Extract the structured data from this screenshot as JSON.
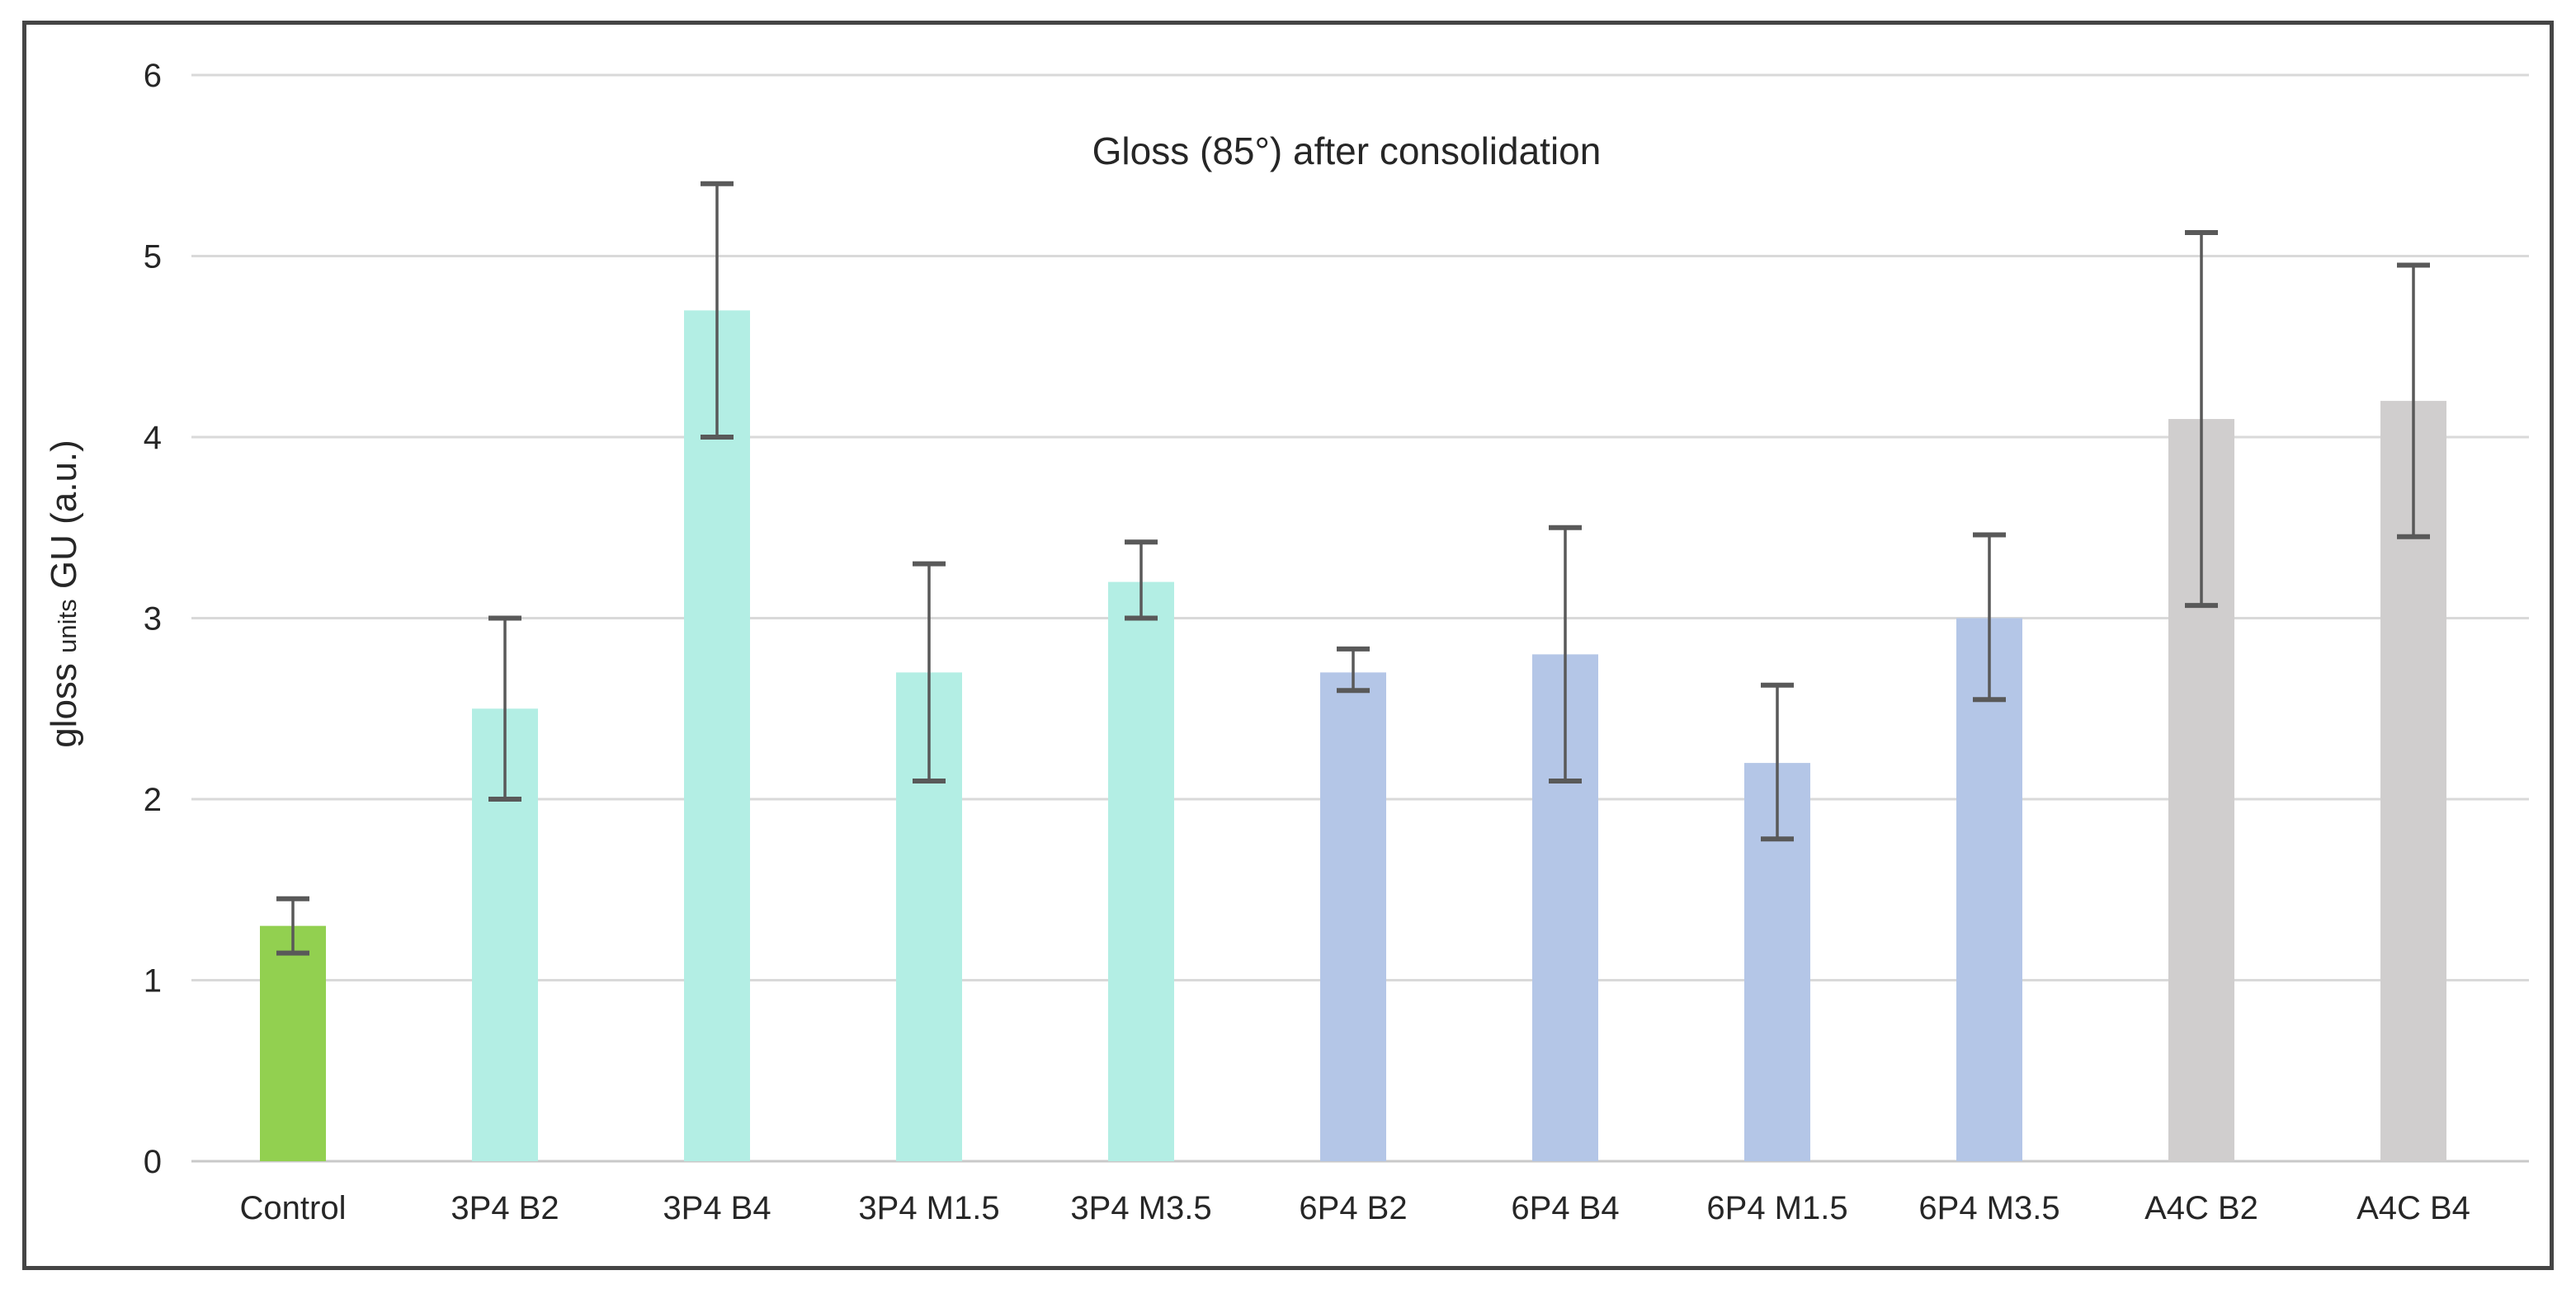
{
  "chart_data": {
    "type": "bar",
    "title": "Gloss (85°) after consolidation",
    "ylabel_main": "gloss",
    "ylabel_small": "units",
    "ylabel_rest": "GU (a.u.)",
    "xlabel": "",
    "ylim": [
      0,
      6
    ],
    "yticks": [
      "0",
      "1",
      "2",
      "3",
      "4",
      "5",
      "6"
    ],
    "grid": true,
    "legend": "none",
    "categories": [
      "Control",
      "3P4 B2",
      "3P4 B4",
      "3P4 M1.5",
      "3P4 M3.5",
      "6P4 B2",
      "6P4 B4",
      "6P4 M1.5",
      "6P4 M3.5",
      "A4C B2",
      "A4C B4"
    ],
    "values": [
      1.3,
      2.5,
      4.7,
      2.7,
      3.2,
      2.7,
      2.8,
      2.2,
      3.0,
      4.1,
      4.2
    ],
    "error_upper": [
      1.45,
      3.0,
      5.4,
      3.3,
      3.42,
      2.83,
      3.5,
      2.63,
      3.46,
      5.13,
      4.95
    ],
    "error_lower": [
      1.15,
      2.0,
      4.0,
      2.1,
      3.0,
      2.6,
      2.1,
      1.78,
      2.55,
      3.07,
      3.45
    ],
    "bar_colors": [
      "#92D050",
      "#B3EEE4",
      "#B3EEE4",
      "#B3EEE4",
      "#B3EEE4",
      "#B4C6E7",
      "#B4C6E7",
      "#B4C6E7",
      "#B4C6E7",
      "#D0CECE",
      "#D0CECE"
    ],
    "group_palette": {
      "control_green": "#92D050",
      "p3_cyan": "#B3EEE4",
      "p6_blue": "#B4C6E7",
      "a4c_gray": "#D0CECE"
    },
    "gridline_color": "#D9D9D9",
    "baseline_color": "#C9C9C9",
    "error_bar_color": "#595959",
    "frame_color": "#454545",
    "text_color": "#262626"
  }
}
